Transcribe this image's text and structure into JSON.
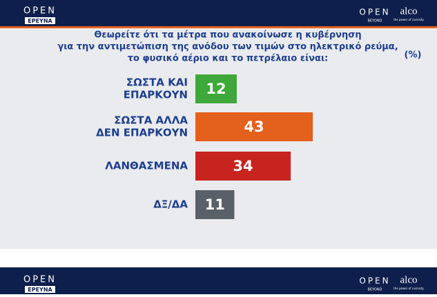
{
  "branding": {
    "top_left": "OPEN",
    "top_left_sub": "ΕΡΕΥΝΑ",
    "top_right": "OPEN",
    "top_right_sub": "BEYOND",
    "partner": "alco",
    "partner_sub": "the power of curiosity",
    "bottom_left": "OPEN",
    "bottom_left_sub": "ΕΡΕΥΝΑ",
    "bottom_right": "OPEN",
    "bottom_right_sub": "BEYOND",
    "bottom_partner": "alco",
    "bottom_partner_sub": "the power of curiosity"
  },
  "chart_data": {
    "type": "bar",
    "title": [
      "Θεωρείτε ότι τα μέτρα που ανακοίνωσε η κυβέρνηση",
      "για την αντιμετώπιση της ανόδου των τιμών στο ηλεκτρικό ρεύμα,",
      "το φυσικό αέριο και το πετρέλαιο είναι:"
    ],
    "unit_label": "(%)",
    "categories": [
      [
        "ΣΩΣΤΑ ΚΑΙ",
        "ΕΠΑΡΚΟΥΝ"
      ],
      [
        "ΣΩΣΤΑ ΑΛΛΑ",
        "ΔΕΝ ΕΠΑΡΚΟΥΝ"
      ],
      [
        "ΛΑΝΘΑΣΜΕΝΑ"
      ],
      [
        "ΔΞ/ΔΑ"
      ]
    ],
    "values": [
      12,
      43,
      34,
      11
    ],
    "colors": [
      "#3fa83a",
      "#e4601d",
      "#c7231f",
      "#5a6068"
    ]
  }
}
